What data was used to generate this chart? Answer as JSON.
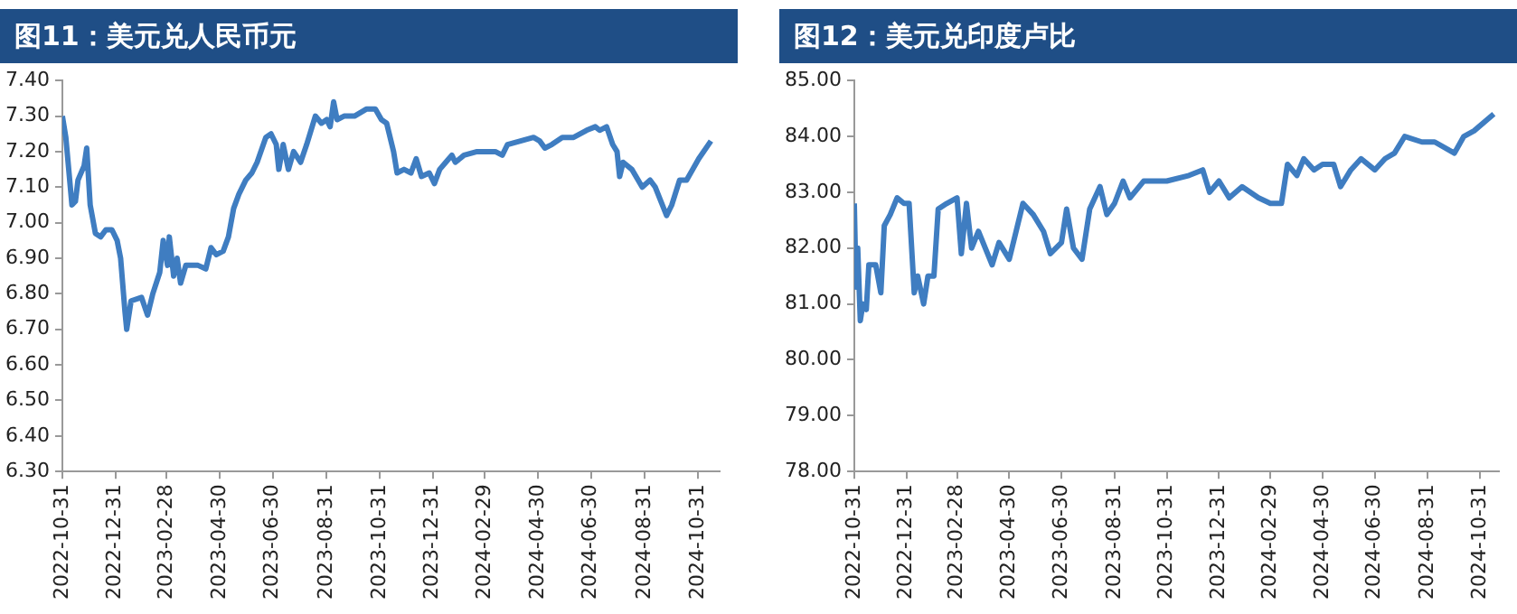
{
  "chart_data": [
    {
      "type": "line",
      "title": "图11：美元兑人民币元",
      "grid": false,
      "legend": false,
      "marker": "none",
      "line_style": "solid",
      "xlim": [
        "2022-10-31",
        "2024-11-25"
      ],
      "xticks": [
        "2022-10-31",
        "2022-12-31",
        "2023-02-28",
        "2023-04-30",
        "2023-06-30",
        "2023-08-31",
        "2023-10-31",
        "2023-12-31",
        "2024-02-29",
        "2024-04-30",
        "2024-06-30",
        "2024-08-31",
        "2024-10-31"
      ],
      "ylim": [
        6.3,
        7.4
      ],
      "yticks": [
        {
          "value": 6.3,
          "label": "6.30"
        },
        {
          "value": 6.4,
          "label": "6.40"
        },
        {
          "value": 6.5,
          "label": "6.50"
        },
        {
          "value": 6.6,
          "label": "6.60"
        },
        {
          "value": 6.7,
          "label": "6.70"
        },
        {
          "value": 6.8,
          "label": "6.80"
        },
        {
          "value": 6.9,
          "label": "6.90"
        },
        {
          "value": 7.0,
          "label": "7.00"
        },
        {
          "value": 7.1,
          "label": "7.10"
        },
        {
          "value": 7.2,
          "label": "7.20"
        },
        {
          "value": 7.3,
          "label": "7.30"
        },
        {
          "value": 7.4,
          "label": "7.40"
        }
      ],
      "series": [
        {
          "color": "#3f7dc1",
          "x": [
            "2022-10-31",
            "2022-11-04",
            "2022-11-11",
            "2022-11-15",
            "2022-11-18",
            "2022-11-25",
            "2022-11-28",
            "2022-12-02",
            "2022-12-08",
            "2022-12-14",
            "2022-12-20",
            "2022-12-27",
            "2023-01-02",
            "2023-01-06",
            "2023-01-11",
            "2023-01-13",
            "2023-01-18",
            "2023-01-30",
            "2023-02-06",
            "2023-02-12",
            "2023-02-20",
            "2023-02-24",
            "2023-03-01",
            "2023-03-03",
            "2023-03-08",
            "2023-03-12",
            "2023-03-16",
            "2023-03-22",
            "2023-04-05",
            "2023-04-14",
            "2023-04-20",
            "2023-04-26",
            "2023-05-04",
            "2023-05-10",
            "2023-05-16",
            "2023-05-22",
            "2023-05-30",
            "2023-06-06",
            "2023-06-12",
            "2023-06-22",
            "2023-06-28",
            "2023-07-04",
            "2023-07-07",
            "2023-07-12",
            "2023-07-18",
            "2023-07-24",
            "2023-08-01",
            "2023-08-08",
            "2023-08-18",
            "2023-08-25",
            "2023-08-31",
            "2023-09-04",
            "2023-09-08",
            "2023-09-12",
            "2023-09-20",
            "2023-10-02",
            "2023-10-16",
            "2023-10-26",
            "2023-11-02",
            "2023-11-08",
            "2023-11-16",
            "2023-11-20",
            "2023-11-28",
            "2023-12-06",
            "2023-12-12",
            "2023-12-18",
            "2023-12-27",
            "2024-01-02",
            "2024-01-08",
            "2024-01-15",
            "2024-01-22",
            "2024-01-26",
            "2024-02-05",
            "2024-02-20",
            "2024-03-01",
            "2024-03-12",
            "2024-03-20",
            "2024-03-26",
            "2024-04-10",
            "2024-04-25",
            "2024-05-02",
            "2024-05-08",
            "2024-05-16",
            "2024-05-28",
            "2024-06-10",
            "2024-06-25",
            "2024-07-05",
            "2024-07-10",
            "2024-07-18",
            "2024-07-25",
            "2024-07-30",
            "2024-08-02",
            "2024-08-06",
            "2024-08-16",
            "2024-08-28",
            "2024-09-06",
            "2024-09-12",
            "2024-09-25",
            "2024-10-01",
            "2024-10-10",
            "2024-10-18",
            "2024-11-01",
            "2024-11-15"
          ],
          "values": [
            7.3,
            7.24,
            7.05,
            7.06,
            7.12,
            7.16,
            7.21,
            7.05,
            6.97,
            6.96,
            6.98,
            6.98,
            6.95,
            6.9,
            6.75,
            6.7,
            6.78,
            6.79,
            6.74,
            6.8,
            6.86,
            6.95,
            6.88,
            6.96,
            6.85,
            6.9,
            6.83,
            6.88,
            6.88,
            6.87,
            6.93,
            6.91,
            6.92,
            6.96,
            7.04,
            7.08,
            7.12,
            7.14,
            7.17,
            7.24,
            7.25,
            7.22,
            7.15,
            7.22,
            7.15,
            7.2,
            7.17,
            7.22,
            7.3,
            7.28,
            7.29,
            7.27,
            7.34,
            7.29,
            7.3,
            7.3,
            7.32,
            7.32,
            7.29,
            7.28,
            7.2,
            7.14,
            7.15,
            7.14,
            7.18,
            7.13,
            7.14,
            7.11,
            7.15,
            7.17,
            7.19,
            7.17,
            7.19,
            7.2,
            7.2,
            7.2,
            7.19,
            7.22,
            7.23,
            7.24,
            7.23,
            7.21,
            7.22,
            7.24,
            7.24,
            7.26,
            7.27,
            7.26,
            7.27,
            7.22,
            7.2,
            7.13,
            7.17,
            7.15,
            7.1,
            7.12,
            7.1,
            7.02,
            7.05,
            7.12,
            7.12,
            7.18,
            7.23
          ]
        }
      ]
    },
    {
      "type": "line",
      "title": "图12：美元兑印度卢比",
      "grid": false,
      "legend": false,
      "marker": "none",
      "line_style": "solid",
      "xlim": [
        "2022-10-31",
        "2024-11-22"
      ],
      "xticks": [
        "2022-10-31",
        "2022-12-31",
        "2023-02-28",
        "2023-04-30",
        "2023-06-30",
        "2023-08-31",
        "2023-10-31",
        "2023-12-31",
        "2024-02-29",
        "2024-04-30",
        "2024-06-30",
        "2024-08-31",
        "2024-10-31"
      ],
      "ylim": [
        78,
        85
      ],
      "yticks": [
        {
          "value": 78,
          "label": "78.00"
        },
        {
          "value": 79,
          "label": "79.00"
        },
        {
          "value": 80,
          "label": "80.00"
        },
        {
          "value": 81,
          "label": "81.00"
        },
        {
          "value": 82,
          "label": "82.00"
        },
        {
          "value": 83,
          "label": "83.00"
        },
        {
          "value": 84,
          "label": "84.00"
        },
        {
          "value": 85,
          "label": "85.00"
        }
      ],
      "series": [
        {
          "color": "#3f7dc1",
          "x": [
            "2022-10-31",
            "2022-11-02",
            "2022-11-04",
            "2022-11-07",
            "2022-11-10",
            "2022-11-14",
            "2022-11-17",
            "2022-11-25",
            "2022-12-01",
            "2022-12-05",
            "2022-12-12",
            "2022-12-20",
            "2022-12-28",
            "2023-01-03",
            "2023-01-09",
            "2023-01-13",
            "2023-01-20",
            "2023-01-25",
            "2023-02-01",
            "2023-02-06",
            "2023-02-16",
            "2023-02-28",
            "2023-03-05",
            "2023-03-11",
            "2023-03-17",
            "2023-03-25",
            "2023-04-10",
            "2023-04-18",
            "2023-04-30",
            "2023-05-16",
            "2023-05-28",
            "2023-06-09",
            "2023-06-17",
            "2023-06-30",
            "2023-07-06",
            "2023-07-14",
            "2023-07-24",
            "2023-08-02",
            "2023-08-14",
            "2023-08-22",
            "2023-08-31",
            "2023-09-10",
            "2023-09-18",
            "2023-10-04",
            "2023-10-31",
            "2023-11-26",
            "2023-12-12",
            "2023-12-20",
            "2023-12-31",
            "2024-01-12",
            "2024-01-27",
            "2024-02-15",
            "2024-02-29",
            "2024-03-13",
            "2024-03-20",
            "2024-03-31",
            "2024-04-08",
            "2024-04-20",
            "2024-04-30",
            "2024-05-13",
            "2024-05-21",
            "2024-06-02",
            "2024-06-14",
            "2024-06-30",
            "2024-07-12",
            "2024-07-23",
            "2024-08-04",
            "2024-08-24",
            "2024-09-08",
            "2024-10-01",
            "2024-10-12",
            "2024-10-24",
            "2024-11-16"
          ],
          "values": [
            82.8,
            81.3,
            82.0,
            80.7,
            81.0,
            80.9,
            81.7,
            81.7,
            81.2,
            82.4,
            82.6,
            82.9,
            82.8,
            82.8,
            81.2,
            81.5,
            81.0,
            81.5,
            81.5,
            82.7,
            82.8,
            82.9,
            81.9,
            82.8,
            82.0,
            82.3,
            81.7,
            82.1,
            81.8,
            82.8,
            82.6,
            82.3,
            81.9,
            82.1,
            82.7,
            82.0,
            81.8,
            82.7,
            83.1,
            82.6,
            82.8,
            83.2,
            82.9,
            83.2,
            83.2,
            83.3,
            83.4,
            83.0,
            83.2,
            82.9,
            83.1,
            82.9,
            82.8,
            82.8,
            83.5,
            83.3,
            83.6,
            83.4,
            83.5,
            83.5,
            83.1,
            83.4,
            83.6,
            83.4,
            83.6,
            83.7,
            84.0,
            83.9,
            83.9,
            83.7,
            84.0,
            84.1,
            84.4
          ]
        }
      ]
    }
  ]
}
